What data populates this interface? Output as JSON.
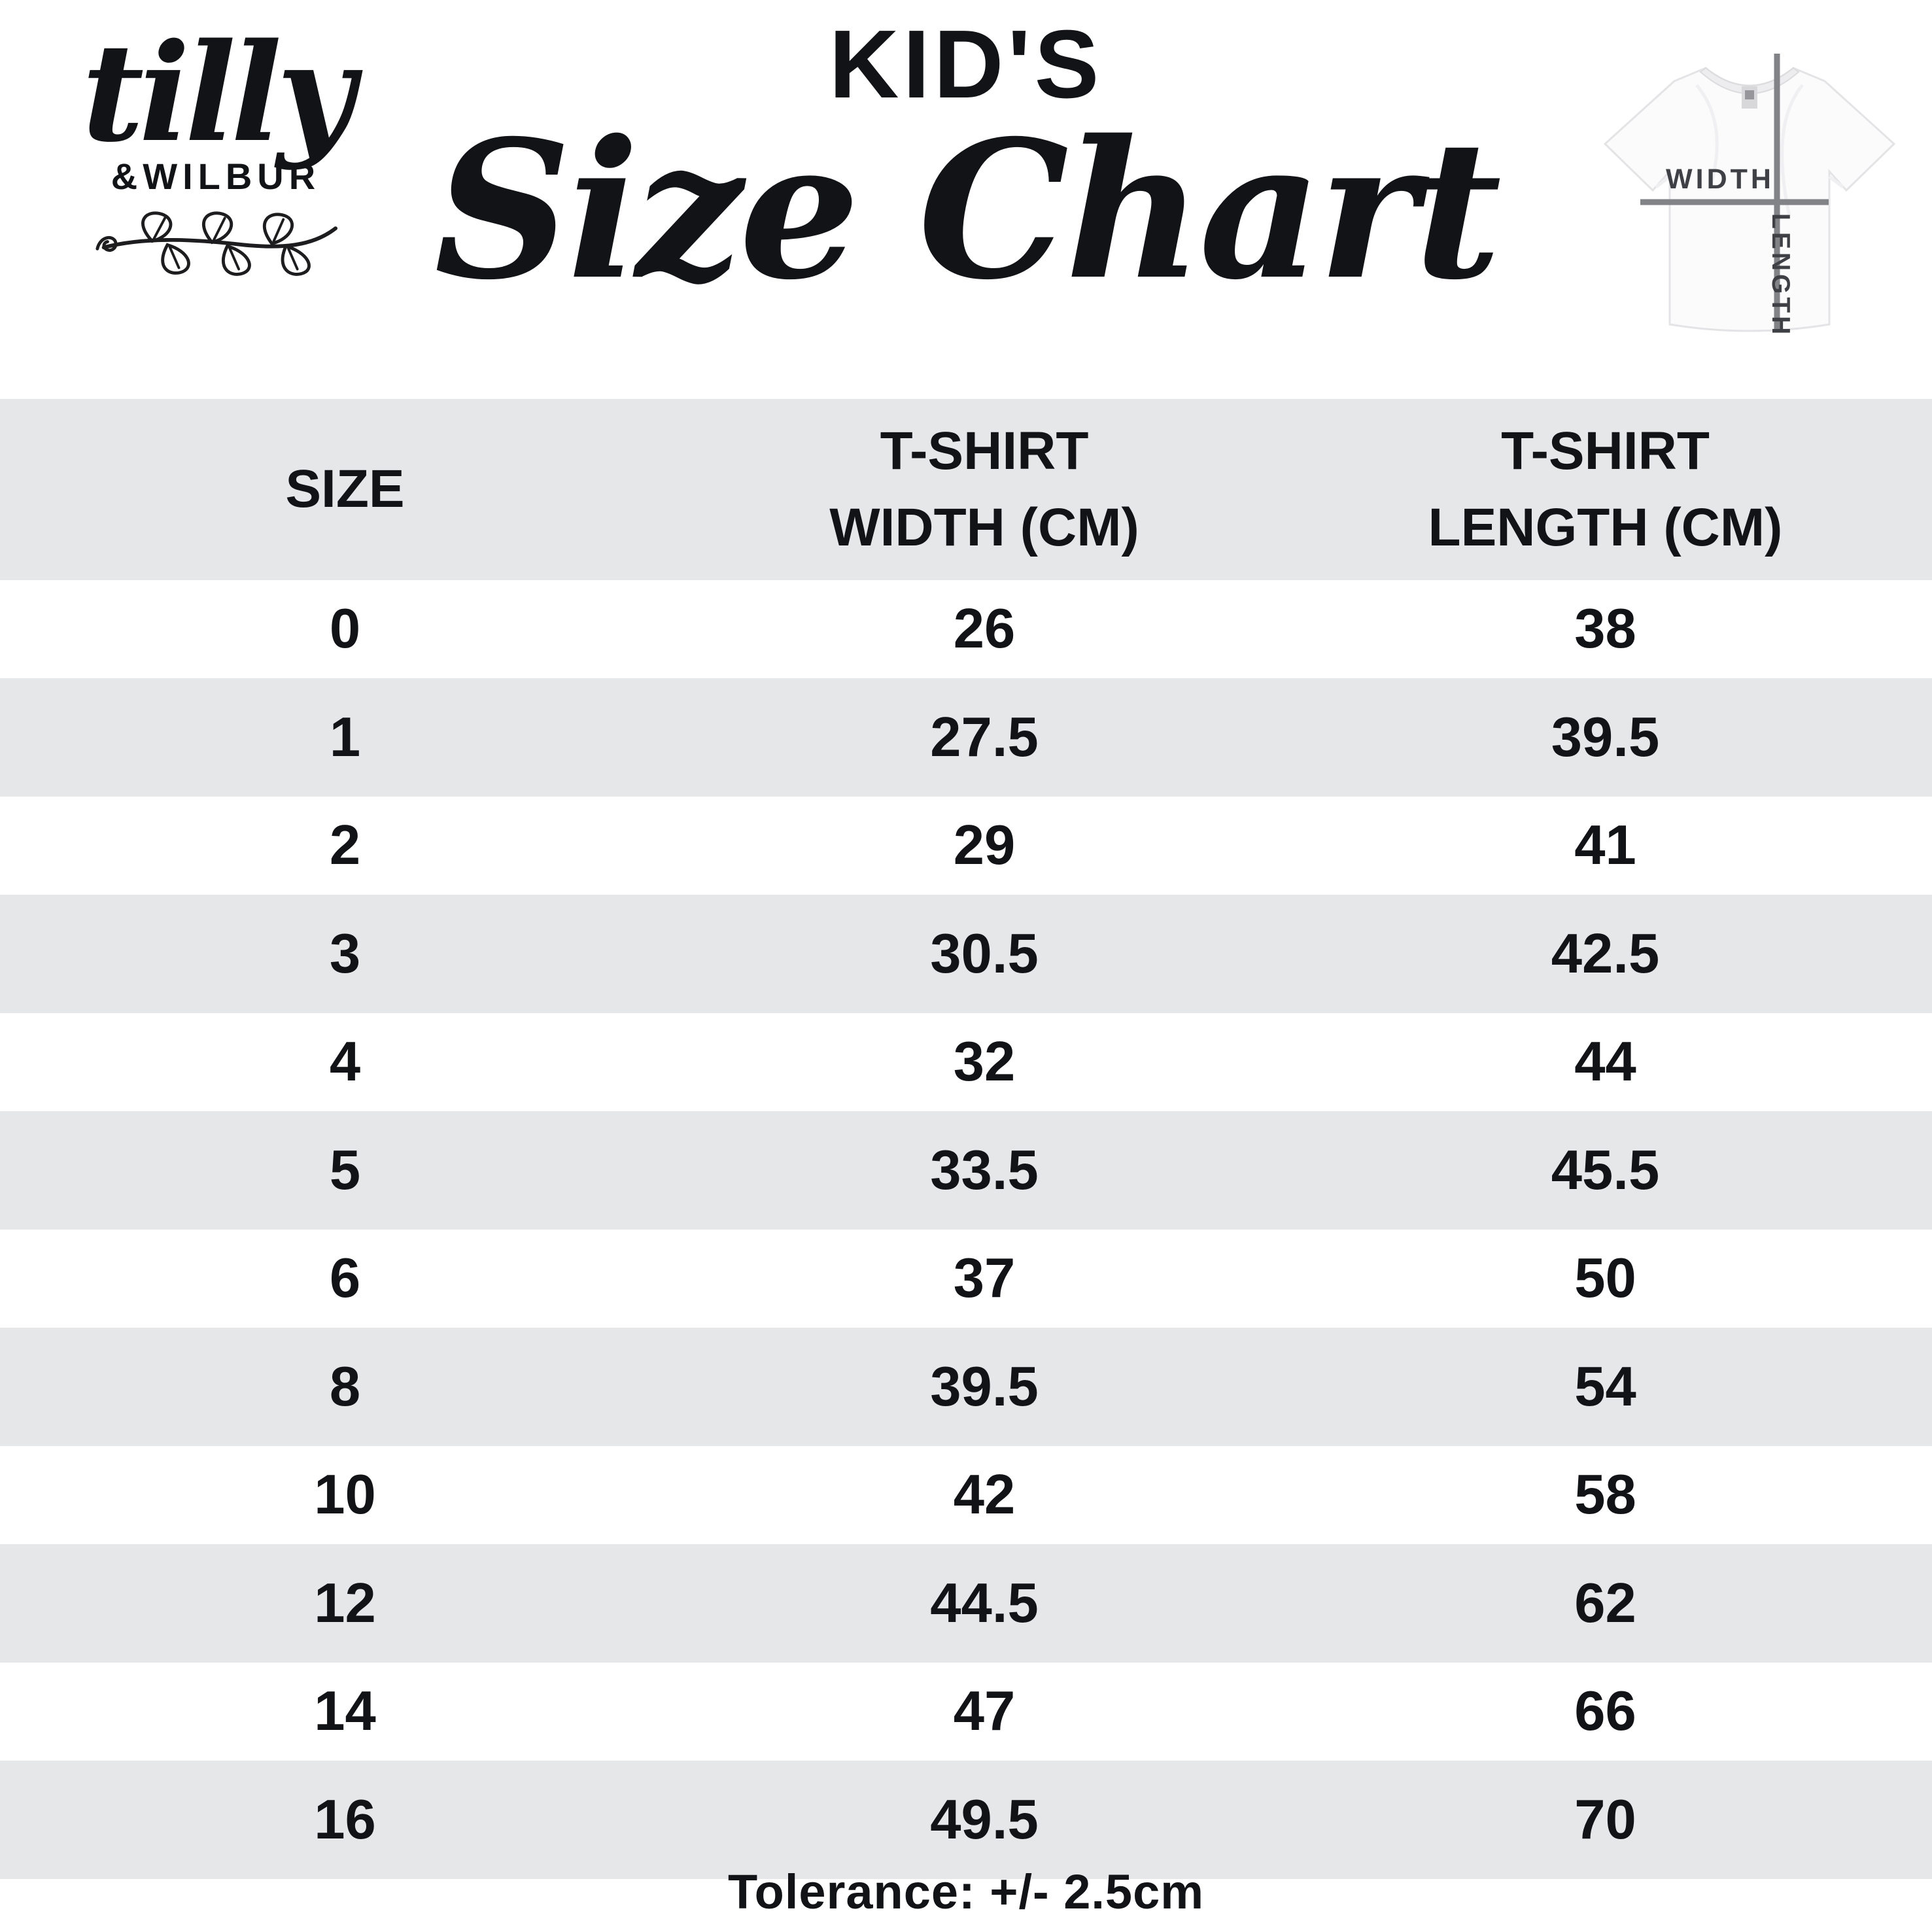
{
  "brand": {
    "script": "tilly",
    "caps": "&WILBUR"
  },
  "title": {
    "kicker": "KID'S",
    "main": "Size Chart"
  },
  "shirt_diagram": {
    "width_label": "WIDTH",
    "length_label": "LENGTH"
  },
  "table": {
    "header": [
      {
        "line1": "SIZE",
        "line2": ""
      },
      {
        "line1": "T-SHIRT",
        "line2": "WIDTH (CM)"
      },
      {
        "line1": "T-SHIRT",
        "line2": "LENGTH (CM)"
      }
    ],
    "rows": [
      [
        "0",
        "26",
        "38"
      ],
      [
        "1",
        "27.5",
        "39.5"
      ],
      [
        "2",
        "29",
        "41"
      ],
      [
        "3",
        "30.5",
        "42.5"
      ],
      [
        "4",
        "32",
        "44"
      ],
      [
        "5",
        "33.5",
        "45.5"
      ],
      [
        "6",
        "37",
        "50"
      ],
      [
        "8",
        "39.5",
        "54"
      ],
      [
        "10",
        "42",
        "58"
      ],
      [
        "12",
        "44.5",
        "62"
      ],
      [
        "14",
        "47",
        "66"
      ],
      [
        "16",
        "49.5",
        "70"
      ]
    ]
  },
  "footer": {
    "tolerance": "Tolerance: +/- 2.5cm"
  },
  "colors": {
    "band": "#e6e7e9",
    "ink": "#121316",
    "line": "#818387",
    "label": "#3e4045"
  }
}
